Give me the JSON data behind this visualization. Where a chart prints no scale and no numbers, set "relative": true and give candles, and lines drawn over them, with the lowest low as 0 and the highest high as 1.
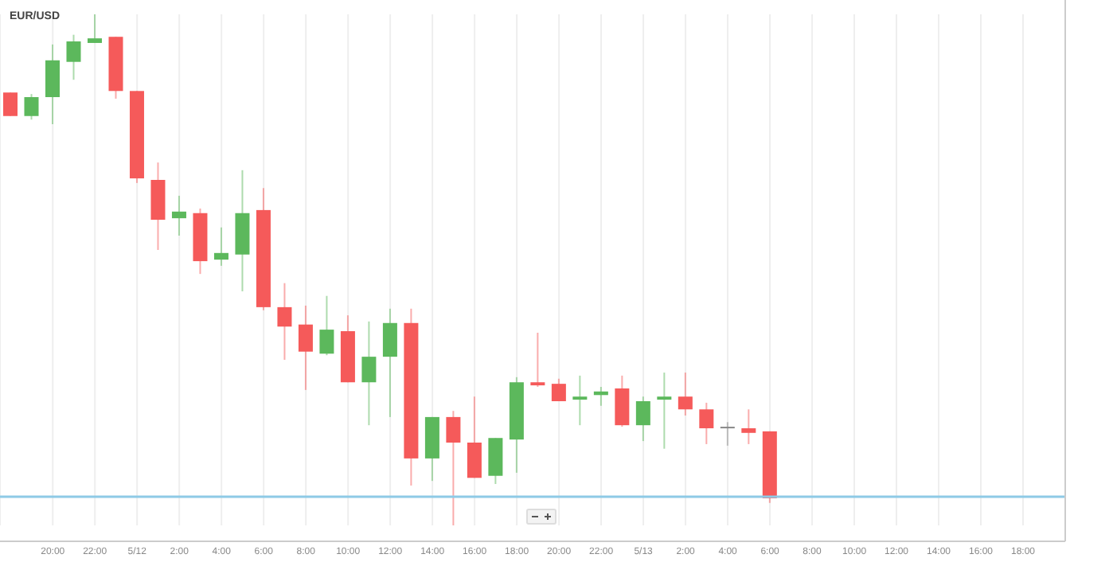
{
  "chart_data": {
    "type": "candlestick",
    "title": "EUR/USD",
    "relative": true,
    "x": [
      "--05-11T18:00",
      "--05-11T19:00",
      "--05-11T20:00",
      "--05-11T21:00",
      "--05-11T22:00",
      "--05-11T23:00",
      "--05-12T00:00",
      "--05-12T01:00",
      "--05-12T02:00",
      "--05-12T03:00",
      "--05-12T04:00",
      "--05-12T05:00",
      "--05-12T06:00",
      "--05-12T07:00",
      "--05-12T08:00",
      "--05-12T09:00",
      "--05-12T10:00",
      "--05-12T11:00",
      "--05-12T12:00",
      "--05-12T13:00",
      "--05-12T14:00",
      "--05-12T15:00",
      "--05-12T16:00",
      "--05-12T17:00",
      "--05-12T18:00",
      "--05-12T19:00",
      "--05-12T20:00",
      "--05-12T21:00",
      "--05-12T22:00",
      "--05-12T23:00",
      "--05-13T00:00",
      "--05-13T01:00",
      "--05-13T02:00",
      "--05-13T03:00",
      "--05-13T04:00",
      "--05-13T05:00",
      "--05-13T06:00"
    ],
    "ohlc": [
      [
        0.847,
        0.847,
        0.801,
        0.801
      ],
      [
        0.801,
        0.844,
        0.794,
        0.838
      ],
      [
        0.838,
        0.941,
        0.785,
        0.91
      ],
      [
        0.907,
        0.96,
        0.872,
        0.947
      ],
      [
        0.944,
        1,
        0.944,
        0.953
      ],
      [
        0.956,
        0.956,
        0.835,
        0.85
      ],
      [
        0.85,
        0.85,
        0.67,
        0.679
      ],
      [
        0.676,
        0.71,
        0.539,
        0.598
      ],
      [
        0.601,
        0.645,
        0.567,
        0.614
      ],
      [
        0.611,
        0.62,
        0.492,
        0.517
      ],
      [
        0.52,
        0.583,
        0.508,
        0.533
      ],
      [
        0.53,
        0.695,
        0.458,
        0.611
      ],
      [
        0.617,
        0.66,
        0.421,
        0.427
      ],
      [
        0.427,
        0.474,
        0.324,
        0.389
      ],
      [
        0.393,
        0.43,
        0.265,
        0.34
      ],
      [
        0.336,
        0.449,
        0.333,
        0.383
      ],
      [
        0.38,
        0.411,
        0.28,
        0.28
      ],
      [
        0.28,
        0.399,
        0.196,
        0.33
      ],
      [
        0.33,
        0.424,
        0.212,
        0.396
      ],
      [
        0.396,
        0.424,
        0.078,
        0.131
      ],
      [
        0.131,
        0.212,
        0.087,
        0.212
      ],
      [
        0.212,
        0.224,
        0,
        0.162
      ],
      [
        0.162,
        0.252,
        0.093,
        0.093
      ],
      [
        0.097,
        0.171,
        0.081,
        0.171
      ],
      [
        0.168,
        0.29,
        0.103,
        0.28
      ],
      [
        0.28,
        0.377,
        0.271,
        0.274
      ],
      [
        0.277,
        0.287,
        0.243,
        0.243
      ],
      [
        0.246,
        0.293,
        0.196,
        0.252
      ],
      [
        0.255,
        0.271,
        0.234,
        0.262
      ],
      [
        0.268,
        0.293,
        0.193,
        0.196
      ],
      [
        0.196,
        0.252,
        0.165,
        0.243
      ],
      [
        0.246,
        0.299,
        0.15,
        0.252
      ],
      [
        0.252,
        0.299,
        0.215,
        0.227
      ],
      [
        0.227,
        0.24,
        0.159,
        0.19
      ],
      [
        0.193,
        0.202,
        0.156,
        0.193
      ],
      [
        0.19,
        0.227,
        0.159,
        0.181
      ],
      [
        0.184,
        0.184,
        0.044,
        0.053
      ]
    ],
    "colors": [
      "#f55a5a",
      "#5cb85c",
      "#5cb85c",
      "#5cb85c",
      "#5cb85c",
      "#f55a5a",
      "#f55a5a",
      "#f55a5a",
      "#5cb85c",
      "#f55a5a",
      "#5cb85c",
      "#5cb85c",
      "#f55a5a",
      "#f55a5a",
      "#f55a5a",
      "#5cb85c",
      "#f55a5a",
      "#5cb85c",
      "#5cb85c",
      "#f55a5a",
      "#5cb85c",
      "#f55a5a",
      "#f55a5a",
      "#5cb85c",
      "#5cb85c",
      "#f55a5a",
      "#f55a5a",
      "#5cb85c",
      "#5cb85c",
      "#f55a5a",
      "#5cb85c",
      "#5cb85c",
      "#f55a5a",
      "#f55a5a",
      "#888888",
      "#f55a5a",
      "#f55a5a"
    ],
    "xlim": [
      "--05-11T17:30",
      "--05-13T20:00"
    ],
    "xticks": [
      {
        "value": "--05-11T20:00",
        "label": "20:00"
      },
      {
        "value": "--05-11T22:00",
        "label": "22:00"
      },
      {
        "value": "--05-12",
        "label": "5/12"
      },
      {
        "value": "--05-12T02:00",
        "label": "2:00"
      },
      {
        "value": "--05-12T04:00",
        "label": "4:00"
      },
      {
        "value": "--05-12T06:00",
        "label": "6:00"
      },
      {
        "value": "--05-12T08:00",
        "label": "8:00"
      },
      {
        "value": "--05-12T10:00",
        "label": "10:00"
      },
      {
        "value": "--05-12T12:00",
        "label": "12:00"
      },
      {
        "value": "--05-12T14:00",
        "label": "14:00"
      },
      {
        "value": "--05-12T16:00",
        "label": "16:00"
      },
      {
        "value": "--05-12T18:00",
        "label": "18:00"
      },
      {
        "value": "--05-12T20:00",
        "label": "20:00"
      },
      {
        "value": "--05-12T22:00",
        "label": "22:00"
      },
      {
        "value": "--05-13",
        "label": "5/13"
      },
      {
        "value": "--05-13T02:00",
        "label": "2:00"
      },
      {
        "value": "--05-13T04:00",
        "label": "4:00"
      },
      {
        "value": "--05-13T06:00",
        "label": "6:00"
      },
      {
        "value": "--05-13T08:00",
        "label": "8:00"
      },
      {
        "value": "--05-13T10:00",
        "label": "10:00"
      },
      {
        "value": "--05-13T12:00",
        "label": "12:00"
      },
      {
        "value": "--05-13T14:00",
        "label": "14:00"
      },
      {
        "value": "--05-13T16:00",
        "label": "16:00"
      },
      {
        "value": "--05-13T18:00",
        "label": "18:00"
      }
    ],
    "grid": "x",
    "ref_lines": [
      {
        "axis": "y",
        "value": 0.056,
        "color": "#8ecae6"
      }
    ]
  }
}
